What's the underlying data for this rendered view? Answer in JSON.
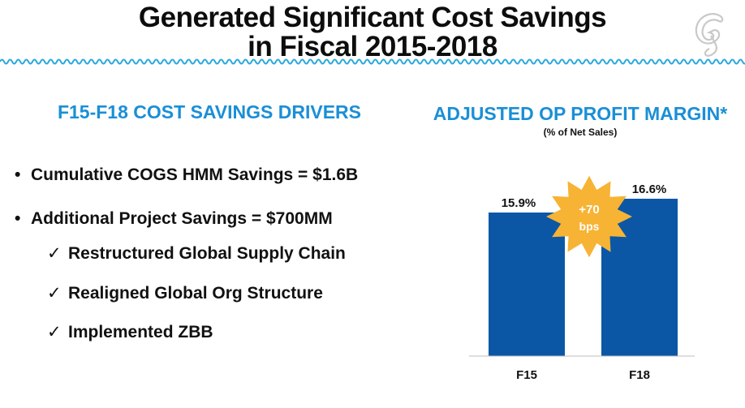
{
  "header": {
    "title_line1": "Generated Significant Cost Savings",
    "title_line2": "in Fiscal 2015-2018"
  },
  "left": {
    "heading": "F15-F18 COST SAVINGS DRIVERS",
    "bullets": [
      "Cumulative COGS HMM Savings = $1.6B",
      "Additional Project Savings = $700MM"
    ],
    "sub_bullets": [
      "Restructured Global Supply Chain",
      "Realigned Global Org Structure",
      "Implemented ZBB"
    ],
    "bullet_glyph": "•",
    "check_glyph": "✓"
  },
  "colors": {
    "accent": "#1a8fd6",
    "bar": "#0b57a6",
    "burst": "#f7b334",
    "wave": "#2aa8df"
  },
  "chart_data": {
    "type": "bar",
    "title": "ADJUSTED OP PROFIT MARGIN*",
    "subtitle": "(% of Net Sales)",
    "categories": [
      "F15",
      "F18"
    ],
    "values": [
      15.9,
      16.6
    ],
    "data_labels": [
      "15.9%",
      "16.6%"
    ],
    "ylim": [
      0,
      16.6
    ],
    "annotation": {
      "line1": "+70",
      "line2": "bps"
    }
  }
}
